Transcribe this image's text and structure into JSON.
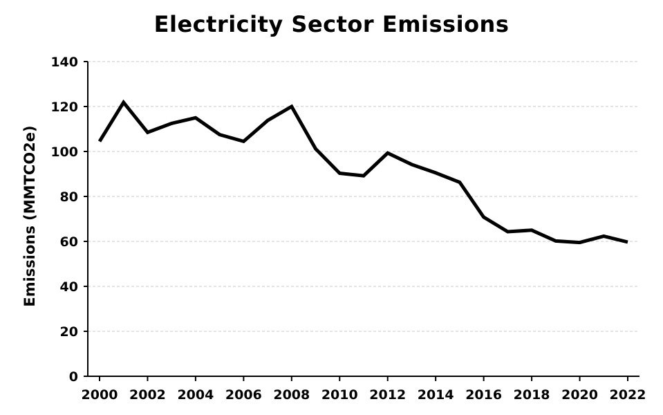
{
  "chart_data": {
    "type": "line",
    "title": "Electricity Sector Emissions",
    "xlabel": "",
    "ylabel": "Emissions (MMTCO2e)",
    "x": [
      2000,
      2001,
      2002,
      2003,
      2004,
      2005,
      2006,
      2007,
      2008,
      2009,
      2010,
      2011,
      2012,
      2013,
      2014,
      2015,
      2016,
      2017,
      2018,
      2019,
      2020,
      2021,
      2022
    ],
    "series": [
      {
        "values": [
          104.5,
          121.8,
          108.5,
          112.5,
          115.0,
          107.5,
          104.5,
          113.8,
          120.0,
          101.2,
          90.3,
          89.2,
          99.3,
          94.2,
          90.5,
          86.3,
          70.8,
          64.3,
          65.0,
          60.2,
          59.5,
          62.3,
          59.7
        ]
      }
    ],
    "xlim": [
      2000,
      2022
    ],
    "ylim": [
      0,
      140
    ],
    "xticks": [
      2000,
      2002,
      2004,
      2006,
      2008,
      2010,
      2012,
      2014,
      2016,
      2018,
      2020,
      2022
    ],
    "yticks": [
      0,
      20,
      40,
      60,
      80,
      100,
      120,
      140
    ],
    "grid": "horizontal-dashed",
    "line_color": "#000000",
    "grid_color": "#c8c8c8"
  }
}
